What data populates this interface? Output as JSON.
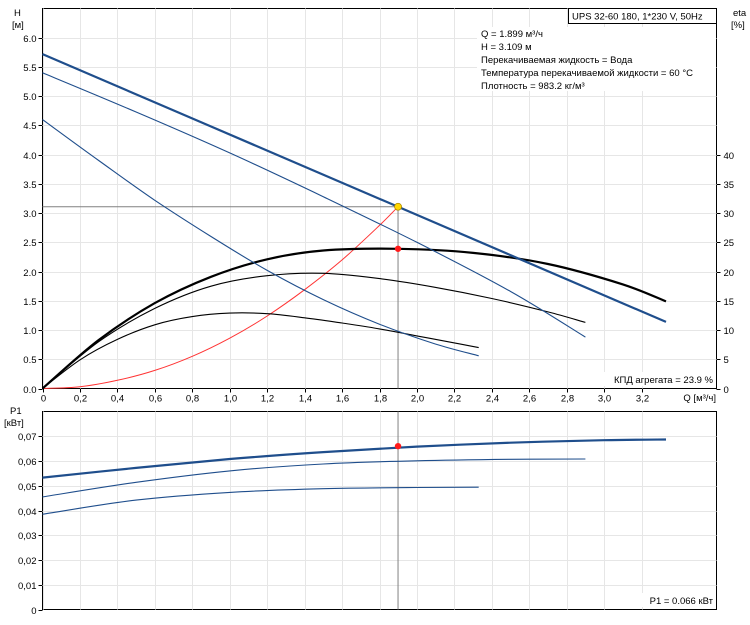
{
  "header": {
    "title": "UPS 32-60 180, 1*230 V, 50Hz",
    "info_lines": [
      "Q = 1.899 м³/ч",
      "H = 3.109 м",
      "Перекачиваемая жидкость = Вода",
      "Температура перекачиваемой жидкости = 60 °C",
      "Плотность = 983.2 кг/м³"
    ]
  },
  "colors": {
    "head_curve": "#1f4e8c",
    "efficiency_curve": "#000000",
    "system_curve": "#ff3333",
    "duty_point_head": "#ffd700",
    "duty_point": "#ff1a1a",
    "grid": "#e6e6e6",
    "crosshair": "#808080"
  },
  "chart_data": [
    {
      "type": "line",
      "name": "head-efficiency",
      "ylabel_line1": "H",
      "ylabel_line2": "[м]",
      "y2label_line1": "eta",
      "y2label_line2": "[%]",
      "xlabel": "Q [м³/ч]",
      "xlim": [
        0,
        3.6
      ],
      "ylim": [
        0,
        6.5
      ],
      "y2lim": [
        0,
        65
      ],
      "x_ticks": [
        "0",
        "0,2",
        "0,4",
        "0,6",
        "0,8",
        "1,0",
        "1,2",
        "1,4",
        "1,6",
        "1,8",
        "2,0",
        "2,2",
        "2,4",
        "2,6",
        "2,8",
        "3,0",
        "3,2"
      ],
      "y_ticks": [
        "0.0",
        "0.5",
        "1.0",
        "1.5",
        "2.0",
        "2.5",
        "3.0",
        "3.5",
        "4.0",
        "4.5",
        "5.0",
        "5.5",
        "6.0"
      ],
      "y2_ticks": [
        "0",
        "5",
        "10",
        "15",
        "20",
        "25",
        "30",
        "35",
        "40"
      ],
      "head_series": [
        {
          "x": [
            0,
            3.33
          ],
          "y": [
            5.72,
            1.14
          ]
        },
        {
          "x": [
            0,
            0.5,
            1.0,
            1.5,
            2.0,
            2.5,
            2.9
          ],
          "y": [
            5.4,
            4.73,
            4.03,
            3.28,
            2.5,
            1.66,
            0.88
          ]
        },
        {
          "x": [
            0,
            0.3,
            0.6,
            0.9,
            1.2,
            1.5,
            1.8,
            2.1,
            2.33
          ],
          "y": [
            4.6,
            3.9,
            3.22,
            2.6,
            2.02,
            1.52,
            1.1,
            0.76,
            0.56
          ]
        }
      ],
      "efficiency_series": [
        {
          "x": [
            0,
            0.3,
            0.6,
            0.9,
            1.2,
            1.5,
            1.9,
            2.3,
            2.7,
            3.1,
            3.33
          ],
          "y": [
            0,
            8.3,
            14.6,
            19.1,
            22.1,
            23.6,
            23.9,
            23.2,
            21.3,
            17.8,
            14.9
          ]
        },
        {
          "x": [
            0,
            0.3,
            0.6,
            0.9,
            1.2,
            1.5,
            1.8,
            2.1,
            2.4,
            2.7,
            2.9
          ],
          "y": [
            0,
            8,
            13.7,
            17.5,
            19.3,
            19.7,
            18.8,
            17.3,
            15.4,
            13.1,
            11.3
          ]
        },
        {
          "x": [
            0,
            0.2,
            0.4,
            0.6,
            0.8,
            1.0,
            1.2,
            1.4,
            1.6,
            1.8,
            2.0,
            2.2,
            2.33
          ],
          "y": [
            0,
            4.9,
            8.4,
            10.9,
            12.3,
            12.9,
            12.8,
            12.1,
            11.2,
            10.2,
            9,
            7.8,
            7
          ]
        }
      ],
      "system_curve": {
        "x": [
          0,
          0.2,
          0.4,
          0.6,
          0.8,
          1.0,
          1.2,
          1.4,
          1.6,
          1.8,
          1.899
        ],
        "y": [
          0,
          0.03,
          0.14,
          0.31,
          0.55,
          0.86,
          1.24,
          1.69,
          2.2,
          2.79,
          3.109
        ]
      },
      "duty_point": {
        "q": 1.899,
        "h": 3.109
      },
      "efficiency_point": {
        "q": 1.899,
        "eta": 23.9
      },
      "efficiency_label": "КПД агрегата = 23.9 %"
    },
    {
      "type": "line",
      "name": "power",
      "ylabel_line1": "P1",
      "ylabel_line2": "[кВт]",
      "xlim": [
        0,
        3.6
      ],
      "ylim": [
        0,
        0.08
      ],
      "y_ticks": [
        "0",
        "0,01",
        "0,02",
        "0,03",
        "0,04",
        "0,05",
        "0,06",
        "0,07"
      ],
      "series": [
        {
          "x": [
            0,
            0.5,
            1.0,
            1.5,
            2.0,
            2.5,
            3.0,
            3.33
          ],
          "y": [
            0.0533,
            0.0572,
            0.0608,
            0.0636,
            0.0658,
            0.0674,
            0.0684,
            0.0687
          ]
        },
        {
          "x": [
            0,
            0.5,
            1.0,
            1.5,
            2.0,
            2.5,
            2.9
          ],
          "y": [
            0.0455,
            0.0514,
            0.056,
            0.0588,
            0.0601,
            0.0607,
            0.0608
          ]
        },
        {
          "x": [
            0,
            0.5,
            1.0,
            1.5,
            2.0,
            2.33
          ],
          "y": [
            0.0385,
            0.0442,
            0.0473,
            0.0488,
            0.0493,
            0.0494
          ]
        }
      ],
      "point": {
        "q": 1.899,
        "p": 0.066
      },
      "label": "P1 = 0.066 кВт"
    }
  ]
}
